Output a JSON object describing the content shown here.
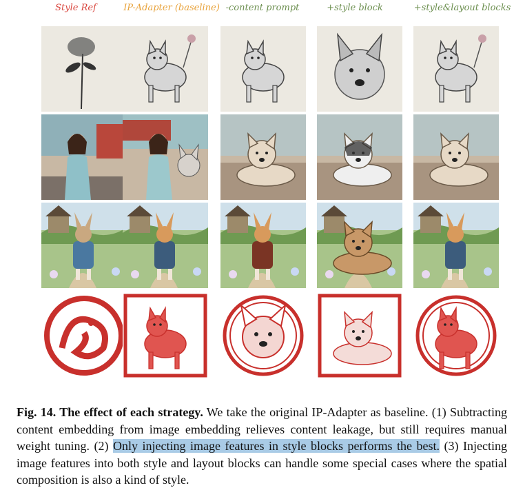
{
  "columns": [
    {
      "label": "Style Ref",
      "color": "#d9473f"
    },
    {
      "label": "IP-Adapter (baseline)",
      "color": "#e8a23a"
    },
    {
      "label": "-content prompt",
      "color": "#6b8e4e"
    },
    {
      "label": "+style block",
      "color": "#6b8e4e"
    },
    {
      "label": "+style&layout blocks",
      "color": "#6b8e4e"
    }
  ],
  "rows": [
    {
      "style": "ink-wash",
      "cells": [
        "ink flower painting",
        "ink dog with flower",
        "ink sitting dog",
        "ink dog portrait",
        "ink dog with flower"
      ]
    },
    {
      "style": "retro-photo",
      "cells": [
        "woman at roadside",
        "woman with dog",
        "lying dog",
        "husky dog lying",
        "lying dog on patio"
      ]
    },
    {
      "style": "storybook",
      "cells": [
        "rabbit in jacket on path",
        "corgi in jacket",
        "dog in coat",
        "fluffy dog lying",
        "dog in vest"
      ]
    },
    {
      "style": "papercut",
      "cells": [
        "red papercut dragon",
        "red papercut dog",
        "papercut dog face",
        "papercut dog lying",
        "papercut dog in circle"
      ]
    }
  ],
  "caption": {
    "fig_label": "Fig. 14. The effect of each strategy.",
    "part1": " We take the original IP-Adapter as baseline. (1) Subtracting content embedding from image embedding relieves content leakage, but still requires manual weight tuning. (2) ",
    "highlight": "Only injecting image features in style blocks performs the best.",
    "part2": " (3) Injecting image features into both style and layout blocks can handle some special cases where the spatial composition is also a kind of style."
  }
}
